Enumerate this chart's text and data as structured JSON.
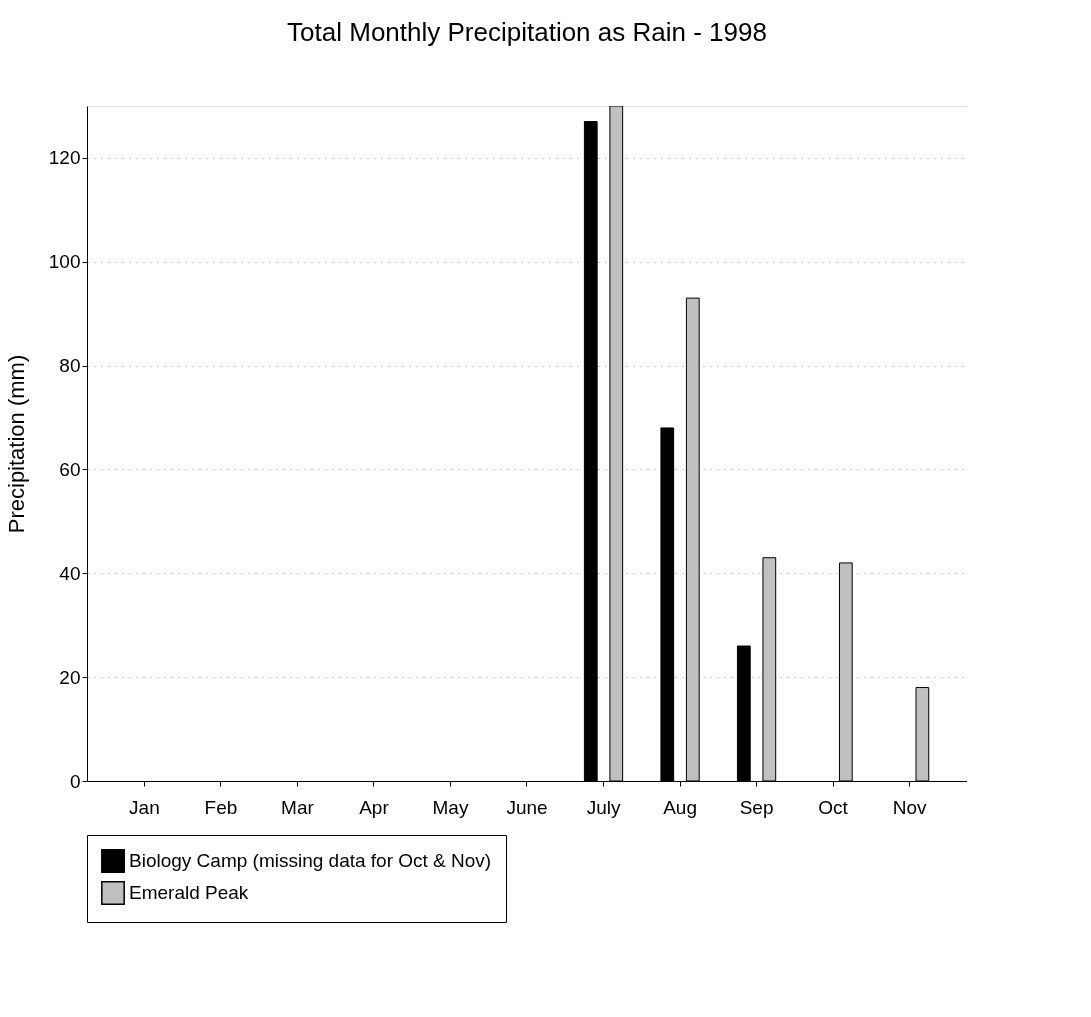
{
  "chart_data": {
    "type": "bar",
    "title": "Total Monthly Precipitation as Rain - 1998",
    "ylabel": "Precipitation (mm)",
    "categories": [
      "Jan",
      "Feb",
      "Mar",
      "Apr",
      "May",
      "June",
      "July",
      "Aug",
      "Sep",
      "Oct",
      "Nov"
    ],
    "series": [
      {
        "name": "Biology Camp (missing data for Oct & Nov)",
        "color": "#000000",
        "values": [
          null,
          null,
          null,
          null,
          null,
          null,
          127,
          68,
          26,
          null,
          null
        ]
      },
      {
        "name": "Emerald Peak",
        "color": "#c0c0c0",
        "values": [
          null,
          null,
          null,
          null,
          null,
          null,
          130,
          93,
          43,
          42,
          18
        ]
      }
    ],
    "ylim": [
      0,
      130
    ],
    "yticks": [
      0,
      20,
      40,
      60,
      80,
      100,
      120
    ],
    "grid": "y",
    "legend": "bottom"
  }
}
